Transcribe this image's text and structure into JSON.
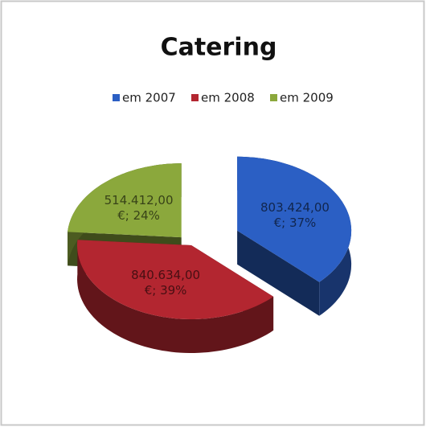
{
  "chart_data": {
    "type": "pie",
    "title": "Catering",
    "categories": [
      "em 2007",
      "em 2008",
      "em 2009"
    ],
    "values": [
      803424,
      840634,
      514412
    ],
    "value_labels": [
      "803.424,00 €; 37%",
      "840.634,00 €; 39%",
      "514.412,00 €; 24%"
    ],
    "colors": [
      "#2b5fc4",
      "#b32630",
      "#8ba83c"
    ],
    "legend": "top"
  }
}
